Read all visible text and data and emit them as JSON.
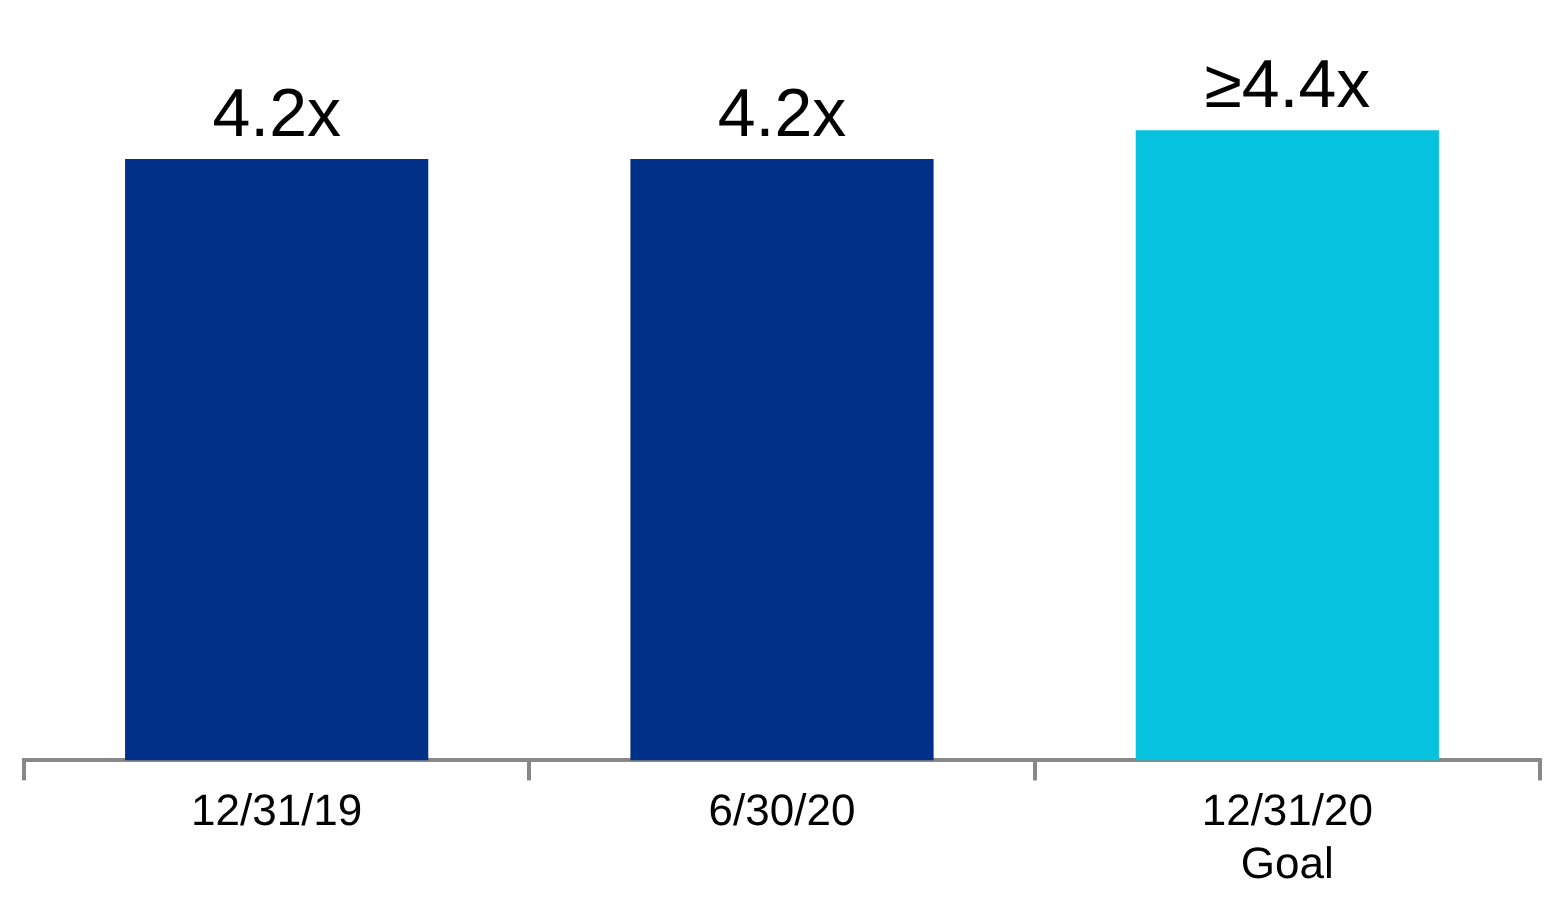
{
  "chart_data": {
    "type": "bar",
    "categories": [
      "12/31/19",
      "6/30/20",
      "12/31/20\nGoal"
    ],
    "values": [
      4.2,
      4.2,
      4.4
    ],
    "colors": [
      "#003087",
      "#003087",
      "#07c2df"
    ],
    "value_labels": [
      "4.2x",
      "4.2x",
      "≥4.4x"
    ],
    "grid": false,
    "legend": false
  }
}
